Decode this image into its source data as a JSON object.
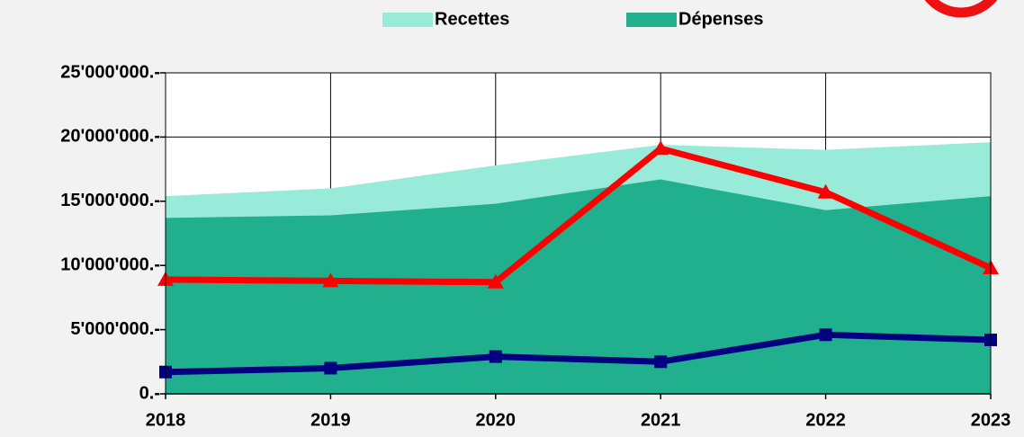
{
  "chart_data": {
    "type": "area",
    "categories": [
      "2018",
      "2019",
      "2020",
      "2021",
      "2022",
      "2023"
    ],
    "series": [
      {
        "name": "Recettes",
        "color": "#99ebd9",
        "kind": "area",
        "values": [
          15400000,
          16000000,
          17800000,
          19400000,
          19000000,
          19600000
        ]
      },
      {
        "name": "Dépenses",
        "color": "#20b08e",
        "kind": "area",
        "values": [
          13700000,
          13900000,
          14800000,
          16700000,
          14300000,
          15400000
        ]
      },
      {
        "color": "#ff0000",
        "kind": "line",
        "marker": "triangle",
        "values": [
          8900000,
          8800000,
          8700000,
          19100000,
          15700000,
          9800000
        ]
      },
      {
        "color": "#000080",
        "kind": "line",
        "marker": "square",
        "values": [
          1700000,
          2000000,
          2900000,
          2500000,
          4600000,
          4200000
        ]
      }
    ],
    "ylim": [
      0,
      25000000
    ],
    "yticks": [
      {
        "value": 0,
        "label": "0.-"
      },
      {
        "value": 5000000,
        "label": "5'000'000.-"
      },
      {
        "value": 10000000,
        "label": "10'000'000.-"
      },
      {
        "value": 15000000,
        "label": "15'000'000.-"
      },
      {
        "value": 20000000,
        "label": "20'000'000.-"
      },
      {
        "value": 25000000,
        "label": "25'000'000.-"
      }
    ],
    "grid": true,
    "legend": "top"
  }
}
